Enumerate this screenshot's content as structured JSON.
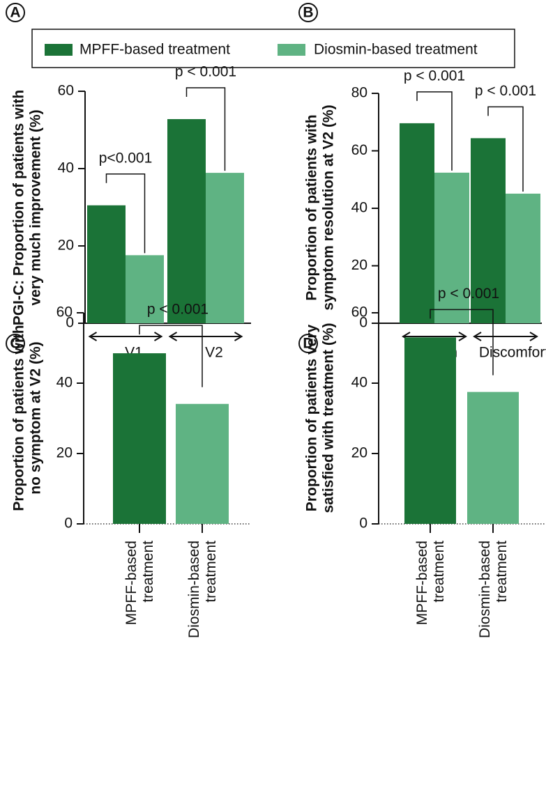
{
  "legend": [
    "MPFF-based treatment",
    "Diosmin-based treatment"
  ],
  "chart_data": [
    {
      "type": "bar",
      "label": "A",
      "ylabel": [
        "PGI-C: Proportion of patients with",
        "very much improvement (%)"
      ],
      "categories": [
        "V1",
        "V2"
      ],
      "series": [
        {
          "name": "MPFF-based treatment",
          "color": "#1b7337",
          "values": [
            30.5,
            52.8
          ]
        },
        {
          "name": "Diosmin-based treatment",
          "color": "#5fb383",
          "values": [
            17.6,
            38.9
          ]
        }
      ],
      "annotations": [
        "p<0.001",
        "p < 0.001"
      ],
      "ylim": [
        0,
        60
      ],
      "yticks": [
        0,
        20,
        40,
        60
      ]
    },
    {
      "type": "bar",
      "label": "B",
      "ylabel": [
        "Proportion of patients with",
        "symptom resolution at V2 (%)"
      ],
      "categories": [
        "Pain",
        "Discomfort"
      ],
      "series": [
        {
          "color": "#1b7337",
          "values": [
            69.6,
            64.4
          ]
        },
        {
          "color": "#5fb383",
          "values": [
            52.4,
            45.1
          ]
        }
      ],
      "annotations": [
        "p < 0.001",
        "p < 0.001"
      ],
      "ylim": [
        0,
        80
      ],
      "yticks": [
        0,
        20,
        40,
        60,
        80
      ]
    },
    {
      "type": "bar",
      "label": "C",
      "ylabel": [
        "Proportion of patients with",
        "no symptom at V2 (%)"
      ],
      "categories": [
        "MPFF-based treatment",
        "Diosmin-based treatment"
      ],
      "values": [
        48.5,
        34.1
      ],
      "colors": [
        "#1b7337",
        "#5fb383"
      ],
      "annotation": "p < 0.001",
      "ylim": [
        0,
        60
      ],
      "yticks": [
        0,
        20,
        40,
        60
      ]
    },
    {
      "type": "bar",
      "label": "D",
      "ylabel": [
        "Proportion of patients very",
        "satisfied with treatment (%)"
      ],
      "categories": [
        "MPFF-based treatment",
        "Diosmin-based treatment"
      ],
      "values": [
        53.0,
        37.5
      ],
      "colors": [
        "#1b7337",
        "#5fb383"
      ],
      "annotation": "p < 0.001",
      "ylim": [
        0,
        60
      ],
      "yticks": [
        0,
        20,
        40,
        60
      ]
    }
  ]
}
